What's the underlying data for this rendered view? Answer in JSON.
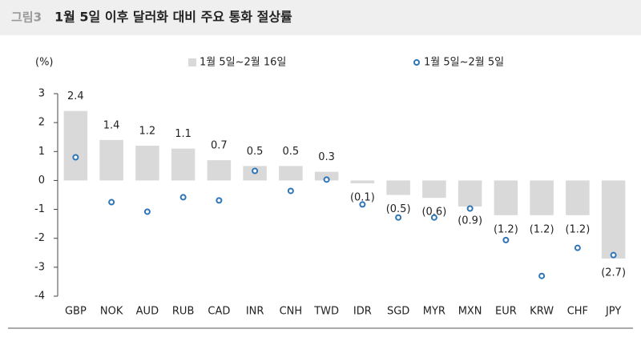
{
  "chart_data": {
    "type": "bar",
    "figure_label": "그림3",
    "title": "1월 5일 이후 달러화 대비 주요 통화 절상률",
    "y_unit": "(%)",
    "categories": [
      "GBP",
      "NOK",
      "AUD",
      "RUB",
      "CAD",
      "INR",
      "CNH",
      "TWD",
      "IDR",
      "SGD",
      "MYR",
      "MXN",
      "EUR",
      "KRW",
      "CHF",
      "JPY"
    ],
    "series": [
      {
        "name": "1월 5일~2월 16일",
        "kind": "bar",
        "color": "#d9d9d9",
        "values": [
          2.4,
          1.4,
          1.2,
          1.1,
          0.7,
          0.5,
          0.5,
          0.3,
          -0.1,
          -0.5,
          -0.6,
          -0.9,
          -1.2,
          -1.2,
          -1.2,
          -2.7
        ],
        "value_labels": [
          "2.4",
          "1.4",
          "1.2",
          "1.1",
          "0.7",
          "0.5",
          "0.5",
          "0.3",
          "(0.1)",
          "(0.5)",
          "(0.6)",
          "(0.9)",
          "(1.2)",
          "(1.2)",
          "(1.2)",
          "(2.7)"
        ]
      },
      {
        "name": "1월 5일~2월 5일",
        "kind": "dot",
        "color": "#2e75b6",
        "values": [
          0.8,
          -0.75,
          -1.08,
          -0.58,
          -0.69,
          0.33,
          -0.36,
          0.03,
          -0.83,
          -1.28,
          -1.28,
          -0.97,
          -2.06,
          -3.3,
          -2.33,
          -2.58
        ]
      }
    ],
    "ylim": [
      -4,
      3
    ],
    "yticks": [
      -4,
      -3,
      -2,
      -1,
      0,
      1,
      2,
      3
    ],
    "grid": false
  }
}
